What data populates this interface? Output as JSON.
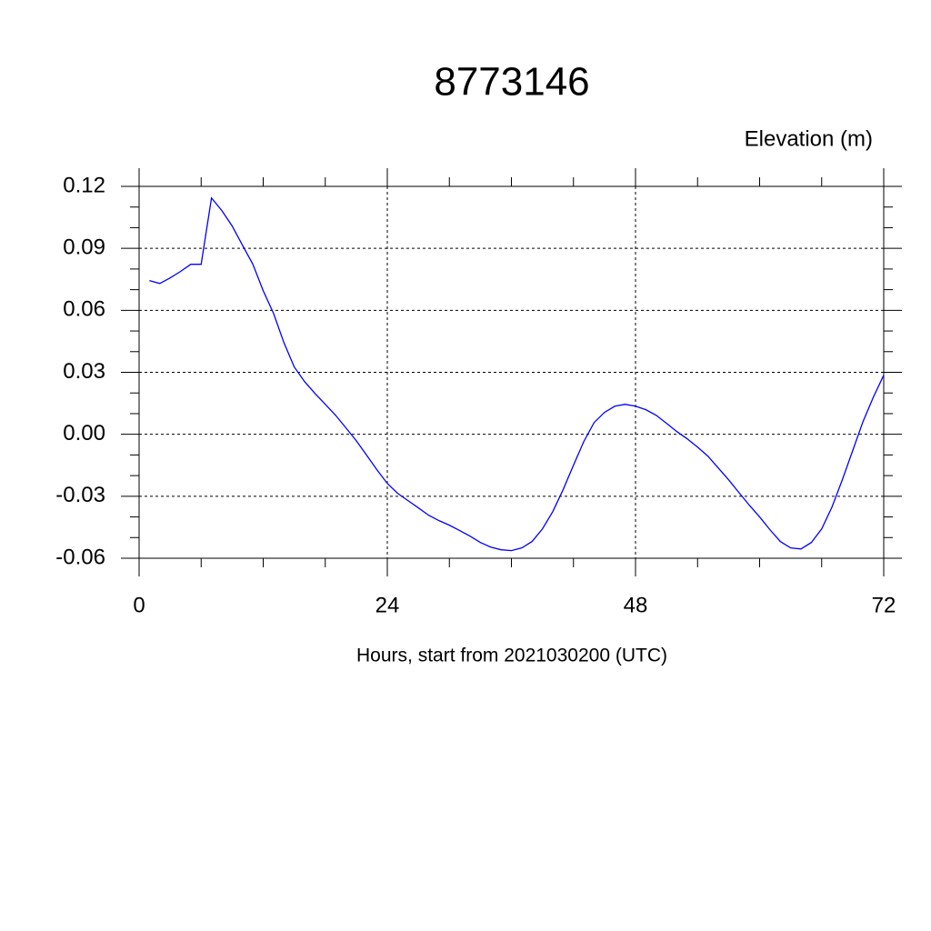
{
  "chart_data": {
    "type": "line",
    "title": "8773146",
    "y_label": "Elevation (m)",
    "x_label": "Hours, start from 2021030200 (UTC)",
    "x": [
      1,
      2,
      3,
      4,
      5,
      6,
      7,
      8,
      9,
      10,
      11,
      12,
      13,
      14,
      15,
      16,
      17,
      18,
      19,
      20,
      21,
      22,
      23,
      24,
      25,
      26,
      27,
      28,
      29,
      30,
      31,
      32,
      33,
      34,
      35,
      36,
      37,
      38,
      39,
      40,
      41,
      42,
      43,
      44,
      45,
      46,
      47,
      48,
      49,
      50,
      51,
      52,
      53,
      54,
      55,
      56,
      57,
      58,
      59,
      60,
      61,
      62,
      63,
      64,
      65,
      66,
      67,
      68,
      69,
      70,
      71,
      72
    ],
    "series": [
      {
        "color": "#0000ff",
        "values": [
          0.0744,
          0.073,
          0.0757,
          0.0788,
          0.0823,
          0.0823,
          0.1144,
          0.1083,
          0.1008,
          0.0915,
          0.0823,
          0.0695,
          0.0585,
          0.0444,
          0.0326,
          0.0255,
          0.0198,
          0.0145,
          0.0092,
          0.0031,
          -0.0031,
          -0.0101,
          -0.0172,
          -0.0238,
          -0.0286,
          -0.0321,
          -0.0356,
          -0.0392,
          -0.0418,
          -0.044,
          -0.0466,
          -0.0493,
          -0.0524,
          -0.0546,
          -0.0559,
          -0.0563,
          -0.055,
          -0.0519,
          -0.0458,
          -0.0374,
          -0.0268,
          -0.015,
          -0.0035,
          0.0057,
          0.0106,
          0.0136,
          0.0145,
          0.0136,
          0.0119,
          0.0092,
          0.0053,
          0.0013,
          -0.0022,
          -0.0062,
          -0.0106,
          -0.0163,
          -0.022,
          -0.0282,
          -0.0343,
          -0.04,
          -0.0462,
          -0.0519,
          -0.055,
          -0.0555,
          -0.0524,
          -0.0458,
          -0.0352,
          -0.022,
          -0.0079,
          0.0062,
          0.018,
          0.0286
        ]
      }
    ],
    "xlim": [
      0,
      72
    ],
    "ylim": [
      -0.06,
      0.12
    ],
    "xticks": [
      0,
      24,
      48,
      72
    ],
    "yticks": [
      0.12,
      0.09,
      0.06,
      0.03,
      {
        "value": 0,
        "label": "0.00"
      },
      -0.03,
      -0.06
    ],
    "xminorticks": [
      6,
      12,
      18,
      30,
      36,
      42,
      54,
      60,
      66
    ],
    "yminorticks": [
      0.11,
      0.1,
      0.08,
      0.07,
      0.05,
      0.04,
      0.02,
      0.01,
      -0.01,
      -0.02,
      -0.04,
      -0.05
    ],
    "grid": true
  }
}
